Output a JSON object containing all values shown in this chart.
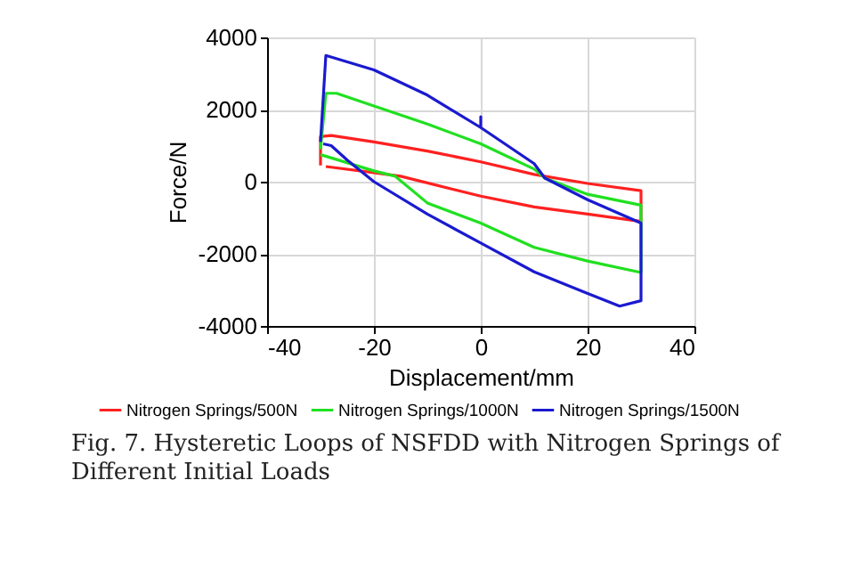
{
  "chart_data": {
    "type": "line",
    "xlabel": "Displacement/mm",
    "ylabel": "Force/N",
    "xlim": [
      -40,
      40
    ],
    "xticks": [
      -40,
      -20,
      0,
      20,
      40
    ],
    "ylim": [
      -4000,
      4000
    ],
    "yticks": [
      -4000,
      -2000,
      0,
      2000,
      4000
    ],
    "grid": true,
    "legend": "bottom",
    "marker": "none",
    "line_style": "solid",
    "annotations": [
      "Fig. 7. Hysteretic Loops of NSFDD with Nitrogen Springs of Different Initial Loads"
    ],
    "series": [
      {
        "name": "Nitrogen Springs/500N",
        "color": "#ff2020",
        "x": [
          -30,
          -30,
          -28,
          -20,
          -10,
          0,
          10,
          20,
          30,
          30,
          20,
          10,
          0,
          -15,
          -20,
          -29
        ],
        "values": [
          450,
          1250,
          1280,
          1100,
          850,
          550,
          200,
          -50,
          -250,
          -1100,
          -900,
          -700,
          -400,
          150,
          250,
          420
        ]
      },
      {
        "name": "Nitrogen Springs/1000N",
        "color": "#20e020",
        "x": [
          -30,
          -29,
          -27,
          -20,
          -10,
          0,
          10,
          12,
          20,
          30,
          30,
          20,
          10,
          0,
          -10,
          -16,
          -20,
          -30
        ],
        "values": [
          900,
          2450,
          2450,
          2100,
          1600,
          1050,
          350,
          100,
          -350,
          -650,
          -2520,
          -2200,
          -1820,
          -1150,
          -590,
          150,
          300,
          750
        ]
      },
      {
        "name": "Nitrogen Springs/1500N",
        "color": "#1a1ad0",
        "x": [
          -30,
          -29,
          -20,
          -10,
          0,
          0,
          0,
          5,
          10,
          12,
          20,
          30,
          30,
          26,
          20,
          10,
          0,
          -10,
          -20,
          -25,
          -28,
          -29.5
        ],
        "values": [
          1100,
          3500,
          3100,
          2400,
          1500,
          1800,
          1500,
          1000,
          500,
          100,
          -500,
          -1150,
          -3300,
          -3450,
          -3100,
          -2500,
          -1700,
          -900,
          0,
          600,
          1000,
          1050
        ]
      }
    ]
  }
}
